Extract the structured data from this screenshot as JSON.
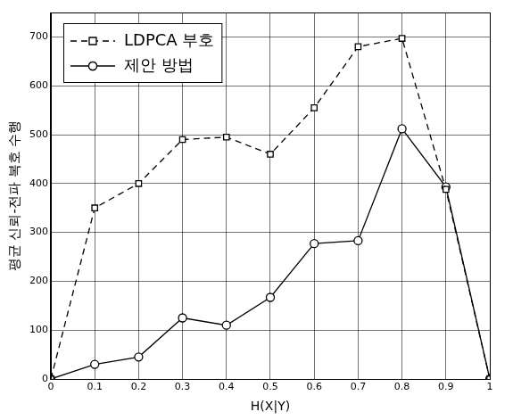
{
  "chart_data": {
    "type": "line",
    "x_label": "H(X|Y)",
    "y_label": "평균 신뢰-전파 복호 수행",
    "x": [
      0,
      0.1,
      0.2,
      0.3,
      0.4,
      0.5,
      0.6,
      0.7,
      0.8,
      0.9,
      1
    ],
    "series": [
      {
        "name": "LDPCA 부호",
        "color": "#000000",
        "marker": "square",
        "line_style": "dashed",
        "values": [
          0,
          350,
          400,
          490,
          495,
          460,
          555,
          680,
          697,
          388,
          0
        ]
      },
      {
        "name": "제안 방법",
        "color": "#000000",
        "marker": "circle",
        "line_style": "solid",
        "values": [
          0,
          30,
          45,
          125,
          110,
          167,
          277,
          283,
          512,
          393,
          0
        ]
      }
    ],
    "xlim": [
      0,
      1
    ],
    "xticks": [
      0,
      0.1,
      0.2,
      0.3,
      0.4,
      0.5,
      0.6,
      0.7,
      0.8,
      0.9,
      1
    ],
    "ylim": [
      0,
      750
    ],
    "yticks": [
      0,
      100,
      200,
      300,
      400,
      500,
      600,
      700
    ],
    "grid": true,
    "legend": "upper left"
  }
}
